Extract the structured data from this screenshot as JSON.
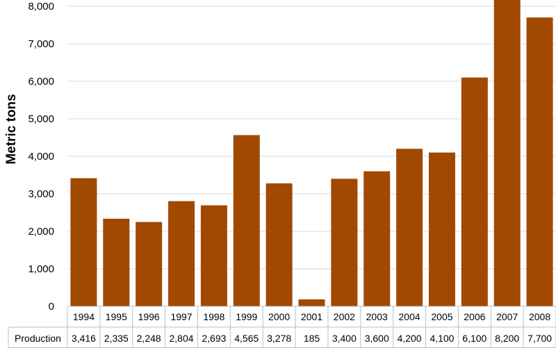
{
  "chart_data": {
    "type": "bar",
    "title": "",
    "xlabel": "",
    "ylabel": "Metric tons",
    "categories": [
      "1994",
      "1995",
      "1996",
      "1997",
      "1998",
      "1999",
      "2000",
      "2001",
      "2002",
      "2003",
      "2004",
      "2005",
      "2006",
      "2007",
      "2008"
    ],
    "series": [
      {
        "name": "Production",
        "values": [
          3416,
          2335,
          2248,
          2804,
          2693,
          4565,
          3278,
          185,
          3400,
          3600,
          4200,
          4100,
          6100,
          8200,
          7700
        ],
        "labels": [
          "3,416",
          "2,335",
          "2,248",
          "2,804",
          "2,693",
          "4,565",
          "3,278",
          "185",
          "3,400",
          "3,600",
          "4,200",
          "4,100",
          "6,100",
          "8,200",
          "7,700"
        ]
      }
    ],
    "ylim": [
      0,
      8000
    ],
    "yticks": [
      0,
      1000,
      2000,
      3000,
      4000,
      5000,
      6000,
      7000,
      8000
    ],
    "ytick_labels": [
      "0",
      "1,000",
      "2,000",
      "3,000",
      "4,000",
      "5,000",
      "6,000",
      "7,000",
      "8,000"
    ],
    "grid": true,
    "legend": "none",
    "data_table": true,
    "colors": {
      "bar": "#a14900",
      "grid": "#d9d9d9",
      "table_border": "#bfbfbf"
    }
  }
}
